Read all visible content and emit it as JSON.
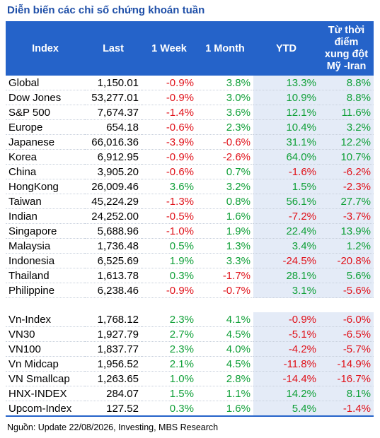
{
  "title": "Diễn biến các chỉ số chứng khoán tuần",
  "table": {
    "header": [
      "Index",
      "Last",
      "1 Week",
      "1 Month",
      "YTD",
      "Từ thời điểm xung đột Mỹ -Iran"
    ],
    "groups": [
      [
        [
          "Global",
          "1,150.01",
          "-0.9%",
          "3.8%",
          "13.3%",
          "8.8%"
        ],
        [
          "Dow Jones",
          "53,277.01",
          "-0.9%",
          "3.0%",
          "10.9%",
          "8.8%"
        ],
        [
          "S&P 500",
          "7,674.37",
          "-1.4%",
          "3.6%",
          "12.1%",
          "11.6%"
        ],
        [
          "Europe",
          "654.18",
          "-0.6%",
          "2.3%",
          "10.4%",
          "3.2%"
        ],
        [
          "Japanese",
          "66,016.36",
          "-3.9%",
          "-0.6%",
          "31.1%",
          "12.2%"
        ],
        [
          "Korea",
          "6,912.95",
          "-0.9%",
          "-2.6%",
          "64.0%",
          "10.7%"
        ],
        [
          "China",
          "3,905.20",
          "-0.6%",
          "0.7%",
          "-1.6%",
          "-6.2%"
        ],
        [
          "HongKong",
          "26,009.46",
          "3.6%",
          "3.2%",
          "1.5%",
          "-2.3%"
        ],
        [
          "Taiwan",
          "45,224.29",
          "-1.3%",
          "0.8%",
          "56.1%",
          "27.7%"
        ],
        [
          "Indian",
          "24,252.00",
          "-0.5%",
          "1.6%",
          "-7.2%",
          "-3.7%"
        ],
        [
          "Singapore",
          "5,688.96",
          "-1.0%",
          "1.9%",
          "22.4%",
          "13.9%"
        ],
        [
          "Malaysia",
          "1,736.48",
          "0.5%",
          "1.3%",
          "3.4%",
          "1.2%"
        ],
        [
          "Indonesia",
          "6,525.69",
          "1.9%",
          "3.3%",
          "-24.5%",
          "-20.8%"
        ],
        [
          "Thailand",
          "1,613.78",
          "0.3%",
          "-1.7%",
          "28.1%",
          "5.6%"
        ],
        [
          "Philippine",
          "6,238.46",
          "-0.9%",
          "-0.7%",
          "3.1%",
          "-5.6%"
        ]
      ],
      [
        [
          "Vn-Index",
          "1,768.12",
          "2.3%",
          "4.1%",
          "-0.9%",
          "-6.0%"
        ],
        [
          "VN30",
          "1,927.79",
          "2.7%",
          "4.5%",
          "-5.1%",
          "-6.5%"
        ],
        [
          "VN100",
          "1,837.77",
          "2.3%",
          "4.0%",
          "-4.2%",
          "-5.7%"
        ],
        [
          "Vn Midcap",
          "1,956.52",
          "2.1%",
          "4.5%",
          "-11.8%",
          "-14.9%"
        ],
        [
          "VN Smallcap",
          "1,263.65",
          "1.0%",
          "2.8%",
          "-14.4%",
          "-16.7%"
        ],
        [
          "HNX-INDEX",
          "284.07",
          "1.5%",
          "1.1%",
          "14.2%",
          "8.1%"
        ],
        [
          "Upcom-Index",
          "127.52",
          "0.3%",
          "1.6%",
          "5.4%",
          "-1.4%"
        ]
      ]
    ]
  },
  "footer": "Nguồn: Update  22/08/2026, Investing, MBS Research"
}
